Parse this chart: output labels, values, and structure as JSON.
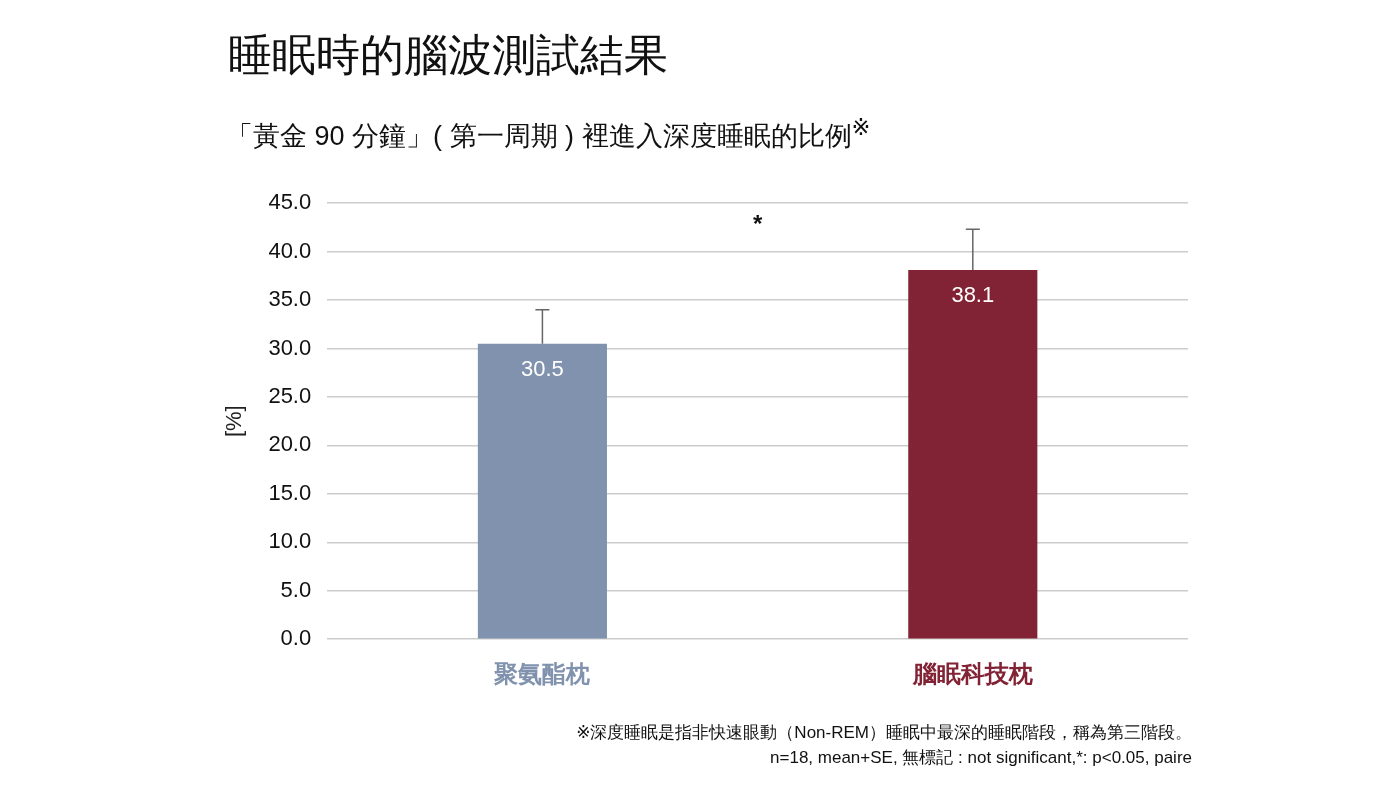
{
  "chart_data": {
    "type": "bar",
    "title": "睡眠時的腦波測試結果",
    "subtitle": "「黃金 90 分鐘」( 第一周期 ) 裡進入深度睡眠的比例$^{※}$",
    "ylabel": "[%]",
    "categories": [
      "聚氨酯枕",
      "腦眠科技枕"
    ],
    "values": [
      30.5,
      38.1
    ],
    "colors": [
      "#8092ad",
      "#812334"
    ],
    "errors": [
      [
        30.5,
        34.0
      ],
      [
        38.1,
        42.3
      ]
    ],
    "ylim": [
      0,
      45
    ],
    "yticks": [
      {
        "value": 0,
        "label": "0.0"
      },
      {
        "value": 5,
        "label": "5.0"
      },
      {
        "value": 10,
        "label": "10.0"
      },
      {
        "value": 15,
        "label": "15.0"
      },
      {
        "value": 20,
        "label": "20.0"
      },
      {
        "value": 25,
        "label": "25.0"
      },
      {
        "value": 30,
        "label": "30.0"
      },
      {
        "value": 35,
        "label": "35.0"
      },
      {
        "value": 40,
        "label": "40.0"
      },
      {
        "value": 45,
        "label": "45.0"
      }
    ],
    "grid": "y",
    "legend": false,
    "data_labels": true,
    "annotations": [
      "*",
      "※深度睡眠是指非快速眼動（Non-REM）睡眠中最深的睡眠階段，稱為第三階段。",
      "n=18, mean+SE, 無標記 : not significant,*: p<0.05, paire"
    ]
  }
}
